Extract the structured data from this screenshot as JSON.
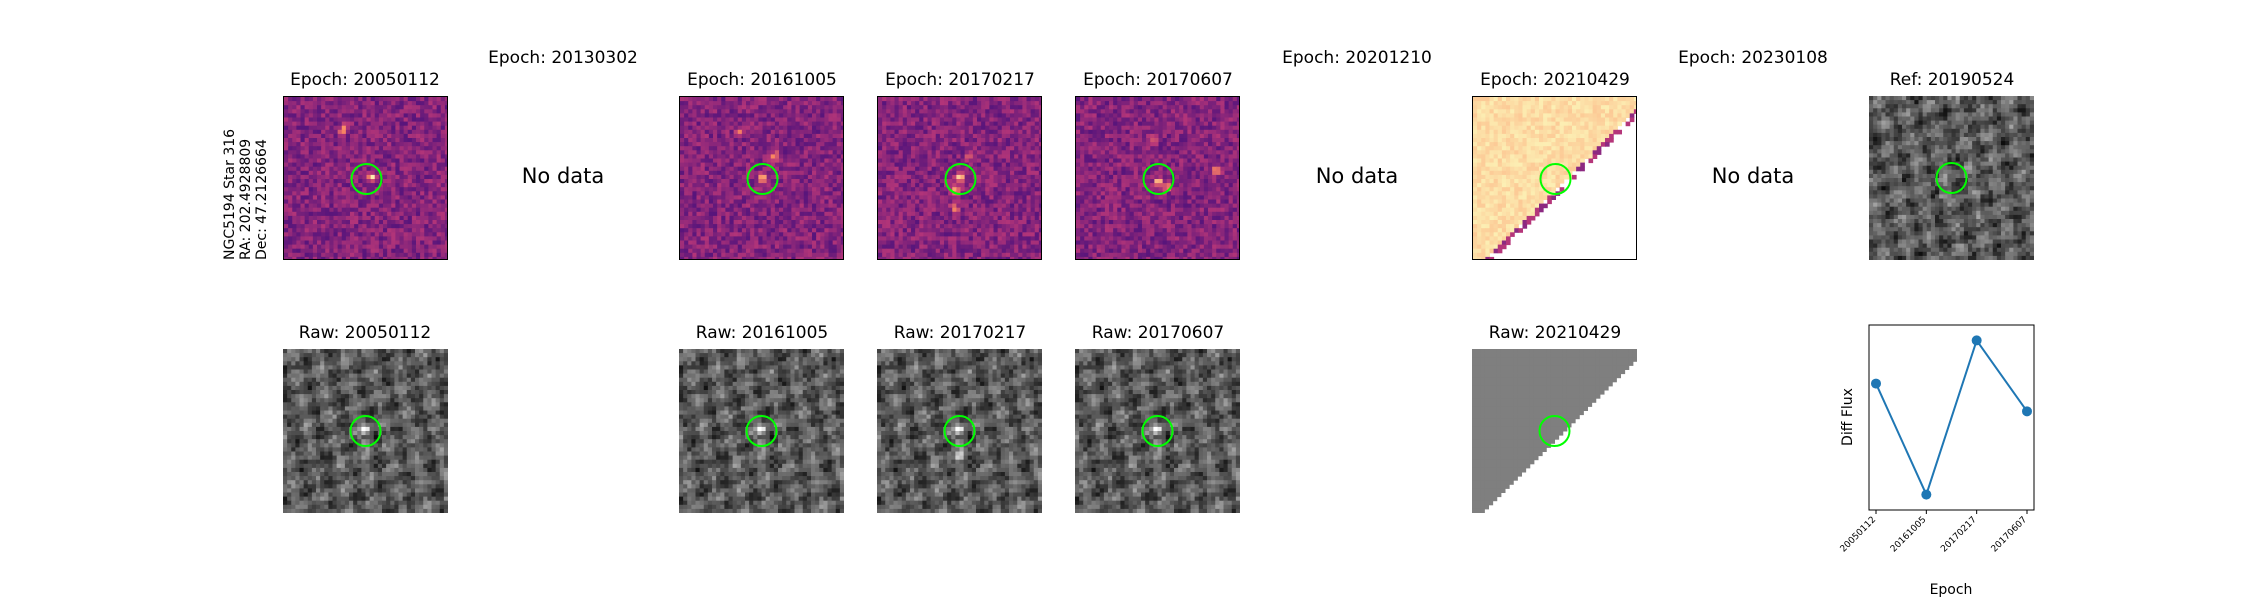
{
  "star_info": {
    "name": "NGC5194 Star 316",
    "ra": "RA: 202.4928809",
    "dec": "Dec: 47.2126664"
  },
  "top_row": [
    {
      "title": "Epoch: 20050112",
      "kind": "diff"
    },
    {
      "title": "Epoch: 20130302",
      "kind": "nodata",
      "nodata_text": "No data"
    },
    {
      "title": "Epoch: 20161005",
      "kind": "diff"
    },
    {
      "title": "Epoch: 20170217",
      "kind": "diff"
    },
    {
      "title": "Epoch: 20170607",
      "kind": "diff"
    },
    {
      "title": "Epoch: 20201210",
      "kind": "nodata",
      "nodata_text": "No data"
    },
    {
      "title": "Epoch: 20210429",
      "kind": "edge"
    },
    {
      "title": "Epoch: 20230108",
      "kind": "nodata",
      "nodata_text": "No data"
    },
    {
      "title": "Ref: 20190524",
      "kind": "ref"
    }
  ],
  "bottom_row": [
    {
      "title": "Raw: 20050112"
    },
    {
      "title": "Raw: 20161005"
    },
    {
      "title": "Raw: 20170217"
    },
    {
      "title": "Raw: 20170607"
    },
    {
      "title": "Raw: 20210429"
    }
  ],
  "colors": {
    "circle": "#00ff00",
    "line": "#1f77b4",
    "magma_low": "#3b0f70",
    "magma_high": "#fcfdbf",
    "edge_fill": "#fdd9a0",
    "raw_gray": "#808080"
  },
  "chart_data": {
    "type": "line",
    "title": "",
    "xlabel": "Epoch",
    "ylabel": "Diff Flux",
    "categories": [
      "20050112",
      "20161005",
      "20170217",
      "20170607"
    ],
    "series": [
      {
        "values": [
          0.72,
          0.0,
          1.0,
          0.54
        ]
      }
    ],
    "ylim": [
      -0.1,
      1.1
    ],
    "grid": false
  }
}
